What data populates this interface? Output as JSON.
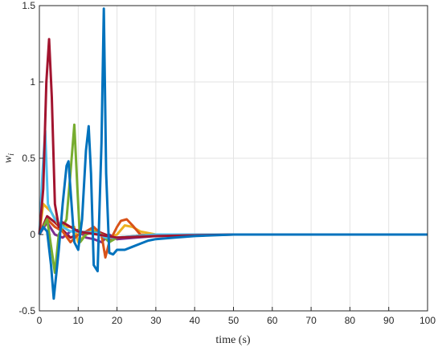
{
  "chart_data": {
    "type": "line",
    "xlabel": "time (s)",
    "ylabel": "w",
    "ylabel_subscript": "i",
    "xlim": [
      0,
      100
    ],
    "xticks": [
      0,
      10,
      20,
      30,
      40,
      50,
      60,
      70,
      80,
      90,
      100
    ],
    "ylim": [
      -0.5,
      1.5
    ],
    "yticks": [
      -0.5,
      0,
      0.5,
      1,
      1.5
    ],
    "grid": true,
    "series": [
      {
        "color": "#A2142F",
        "x": [
          0,
          2,
          4,
          6,
          8,
          10,
          15,
          20,
          25,
          30,
          100
        ],
        "values": [
          0,
          0.12,
          0.08,
          0.03,
          -0.02,
          0.0,
          0.02,
          -0.03,
          -0.01,
          0,
          0
        ]
      },
      {
        "color": "#7E2F8E",
        "x": [
          0,
          2,
          4,
          6,
          8,
          10,
          12,
          14,
          16,
          18,
          20,
          25,
          30,
          40,
          100
        ],
        "values": [
          0,
          0.08,
          0.0,
          -0.02,
          0.02,
          0.03,
          -0.02,
          -0.03,
          -0.05,
          0.0,
          -0.03,
          -0.02,
          -0.01,
          0,
          0
        ]
      },
      {
        "color": "#EDB120",
        "x": [
          0,
          1,
          3,
          5,
          7,
          9,
          10,
          12,
          14,
          16,
          18,
          20,
          22,
          24,
          26,
          30,
          40,
          100
        ],
        "values": [
          0,
          0.2,
          0.15,
          0.06,
          0.05,
          0.05,
          -0.05,
          0.0,
          0.04,
          0.0,
          -0.02,
          0.0,
          0.06,
          0.05,
          0.02,
          0,
          0,
          0
        ]
      },
      {
        "color": "#D95319",
        "x": [
          0,
          2,
          4,
          6,
          8,
          10,
          12,
          14,
          16,
          17,
          18,
          20,
          21,
          22.5,
          24,
          26,
          30,
          40,
          100
        ],
        "values": [
          0,
          0.1,
          0.05,
          0.02,
          -0.05,
          0.0,
          0.02,
          0.05,
          0.0,
          -0.15,
          -0.05,
          0.05,
          0.09,
          0.1,
          0.06,
          0,
          -0.01,
          0,
          0
        ]
      },
      {
        "color": "#77AC30",
        "x": [
          0,
          2,
          4,
          5,
          6,
          7,
          8,
          9,
          9.8,
          10.5,
          12,
          14,
          16,
          18,
          20,
          25,
          30,
          40,
          100
        ],
        "values": [
          0,
          0.1,
          -0.25,
          0.0,
          0.05,
          0.1,
          0.4,
          0.72,
          0.3,
          -0.05,
          0,
          0.02,
          0,
          -0.05,
          -0.02,
          -0.01,
          0,
          0,
          0
        ]
      },
      {
        "color": "#4DBEEE",
        "x": [
          0,
          0.8,
          1.5,
          2.2,
          3,
          4,
          6,
          8,
          10,
          15,
          17,
          20,
          25,
          30,
          40,
          60,
          100
        ],
        "values": [
          0,
          0.4,
          0.68,
          0.2,
          0.15,
          0.1,
          0.05,
          0.02,
          0.02,
          0.01,
          -0.02,
          -0.02,
          -0.01,
          0,
          0,
          0,
          0
        ]
      },
      {
        "color": "#A2142F",
        "x": [
          0,
          1,
          1.8,
          2.5,
          3.2,
          4,
          5,
          6,
          8,
          10,
          15,
          20,
          30,
          50,
          100
        ],
        "values": [
          0,
          0.3,
          1.0,
          1.28,
          0.9,
          0.2,
          0.05,
          0.08,
          0.05,
          0.02,
          0,
          -0.02,
          -0.01,
          0,
          0
        ]
      },
      {
        "color": "#0072BD",
        "x": [
          0,
          1,
          2,
          3,
          3.7,
          5,
          6,
          7,
          7.5,
          8,
          9,
          10,
          11,
          12,
          12.7,
          13.3,
          14,
          15,
          16,
          16.6,
          17.2,
          18,
          19,
          20,
          22,
          24,
          26,
          28,
          30,
          35,
          40,
          50,
          60,
          70,
          100
        ],
        "values": [
          0,
          0.05,
          0.02,
          -0.2,
          -0.42,
          -0.1,
          0.2,
          0.45,
          0.48,
          0.3,
          -0.05,
          -0.1,
          0.1,
          0.55,
          0.71,
          0.4,
          -0.2,
          -0.24,
          0.6,
          1.48,
          0.4,
          -0.12,
          -0.13,
          -0.1,
          -0.1,
          -0.08,
          -0.06,
          -0.04,
          -0.03,
          -0.02,
          -0.01,
          0,
          0,
          0,
          0
        ]
      }
    ]
  }
}
